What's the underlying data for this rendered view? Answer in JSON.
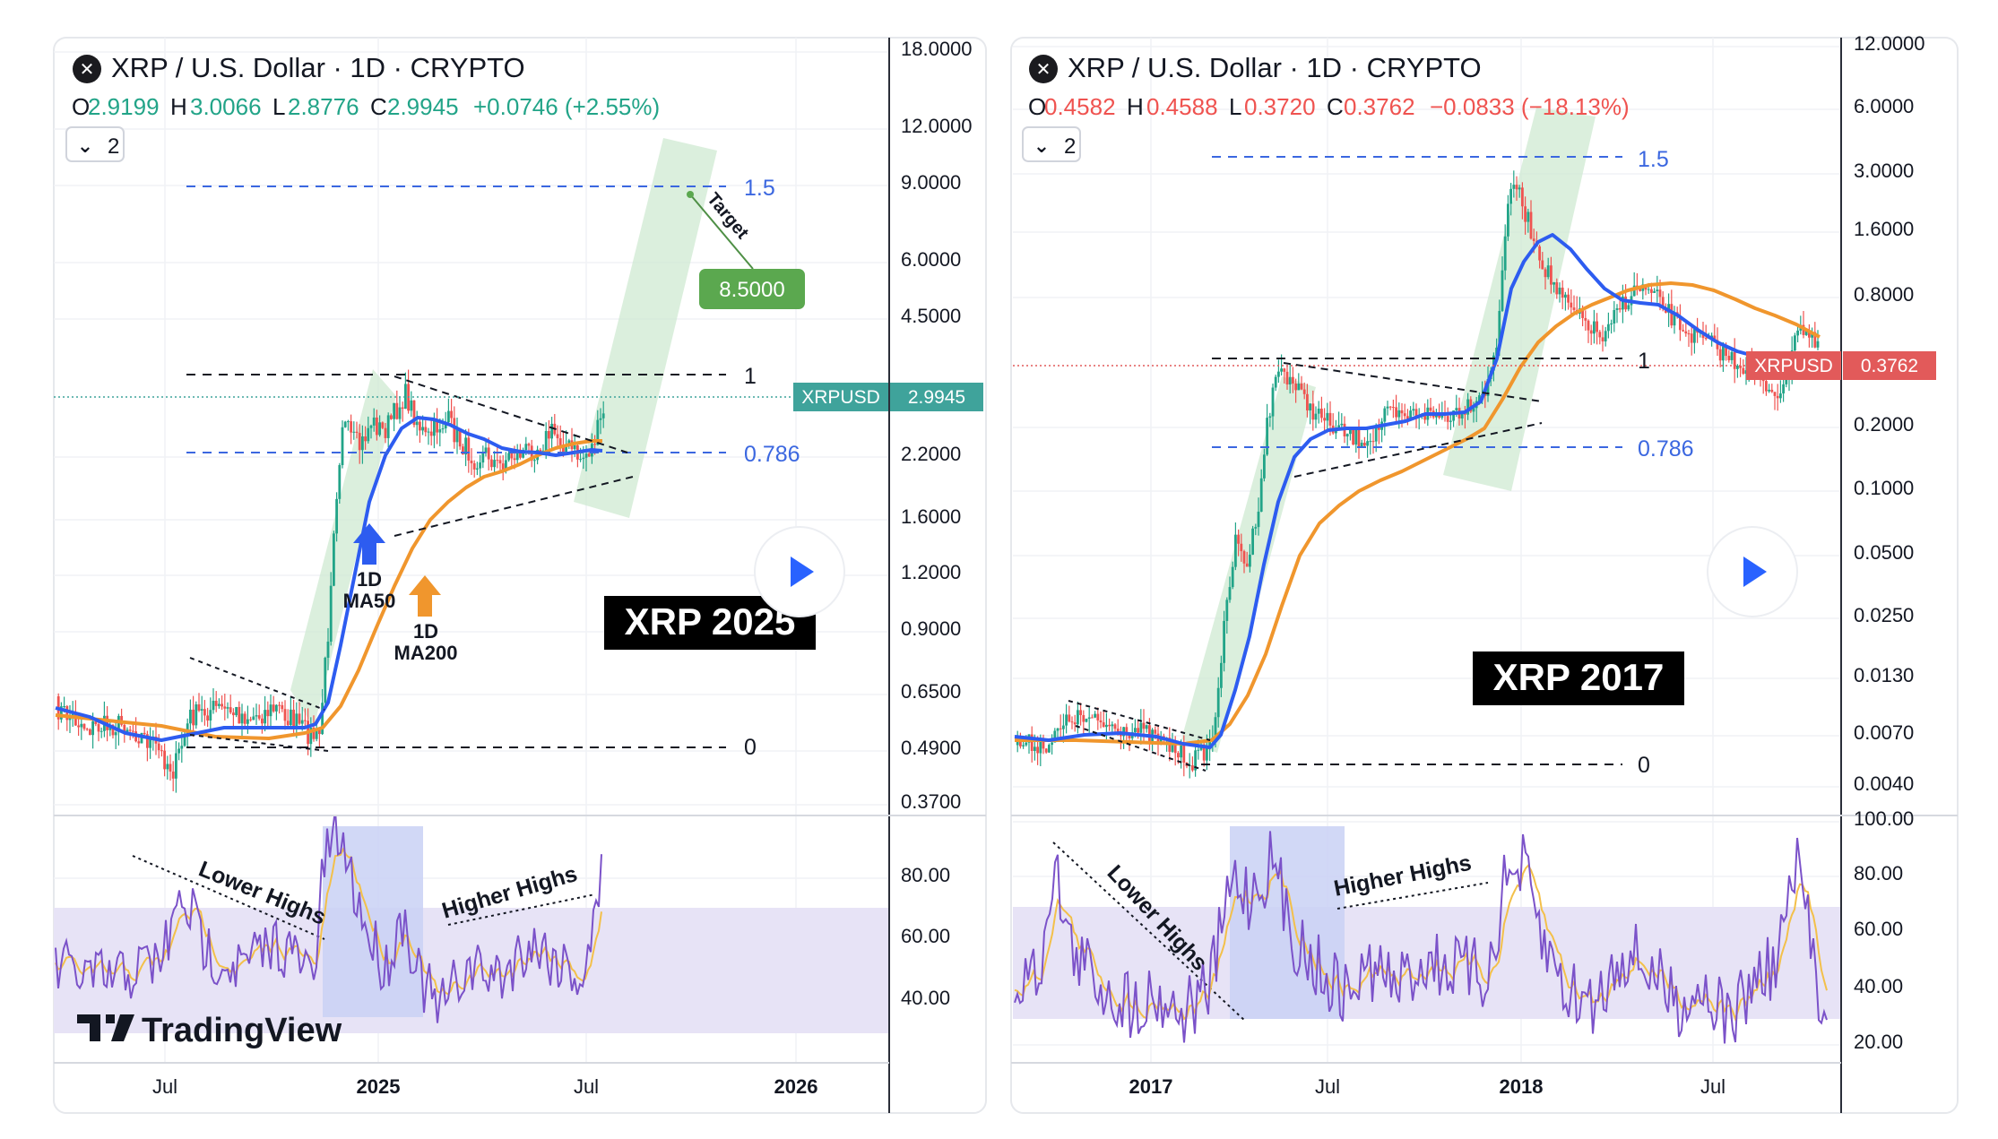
{
  "colors": {
    "up": "#22a488",
    "down": "#ef5350",
    "ma50": "#2d5cf0",
    "ma200": "#f0962d",
    "fib": "#3b67e0",
    "rsi": "#7b52c9",
    "rsi_ma": "#f3c04a",
    "rsi_band": "#e7e3f6",
    "channel": "#cfe9d2",
    "xrpusd_left": "#3fa39b",
    "xrpusd_right": "#e25a5a",
    "target": "#5ba84f"
  },
  "left_panel": {
    "title": "XRP / U.S. Dollar · 1D · CRYPTO",
    "ohlc": [
      {
        "k": "O",
        "v": "2.9199"
      },
      {
        "k": "H",
        "v": "3.0066"
      },
      {
        "k": "L",
        "v": "2.8776"
      },
      {
        "k": "C",
        "v": "2.9945"
      }
    ],
    "change": "+0.0746 (+2.55%)",
    "change_dir": "up",
    "indicator_count": "2",
    "price_label": {
      "symbol": "XRPUSD",
      "value": "2.9945"
    },
    "fib_labels": [
      "1.5",
      "1",
      "0.786",
      "0"
    ],
    "target_label": "Target",
    "target_value": "8.5000",
    "ma50_label": [
      "1D",
      "MA50"
    ],
    "ma200_label": [
      "1D",
      "MA200"
    ],
    "title_badge": "XRP 2025",
    "rsi_annotations": [
      "Lower Highs",
      "Higher Highs"
    ],
    "brand": "TradingView",
    "price_axis": [
      "18.0000",
      "12.0000",
      "9.0000",
      "6.0000",
      "4.5000",
      "2.2000",
      "1.6000",
      "1.2000",
      "0.9000",
      "0.6500",
      "0.4900",
      "0.3700"
    ],
    "rsi_axis": [
      "80.00",
      "60.00",
      "40.00"
    ],
    "time_axis": [
      {
        "label": "Jul",
        "bold": false
      },
      {
        "label": "2025",
        "bold": true
      },
      {
        "label": "Jul",
        "bold": false
      },
      {
        "label": "2026",
        "bold": true
      }
    ]
  },
  "right_panel": {
    "title": "XRP / U.S. Dollar · 1D · CRYPTO",
    "ohlc": [
      {
        "k": "O",
        "v": "0.4582"
      },
      {
        "k": "H",
        "v": "0.4588"
      },
      {
        "k": "L",
        "v": "0.3720"
      },
      {
        "k": "C",
        "v": "0.3762"
      }
    ],
    "change": "−0.0833 (−18.13%)",
    "change_dir": "down",
    "indicator_count": "2",
    "price_label": {
      "symbol": "XRPUSD",
      "value": "0.3762"
    },
    "fib_labels": [
      "1.5",
      "1",
      "0.786",
      "0"
    ],
    "title_badge": "XRP 2017",
    "rsi_annotations": [
      "Lower Highs",
      "Higher Highs"
    ],
    "price_axis": [
      "12.0000",
      "6.0000",
      "3.0000",
      "1.6000",
      "0.8000",
      "0.2000",
      "0.1000",
      "0.0500",
      "0.0250",
      "0.0130",
      "0.0070",
      "0.0040"
    ],
    "rsi_axis": [
      "100.00",
      "80.00",
      "60.00",
      "40.00",
      "20.00"
    ],
    "time_axis": [
      {
        "label": "2017",
        "bold": true
      },
      {
        "label": "Jul",
        "bold": false
      },
      {
        "label": "2018",
        "bold": true
      },
      {
        "label": "Jul",
        "bold": false
      }
    ]
  }
}
